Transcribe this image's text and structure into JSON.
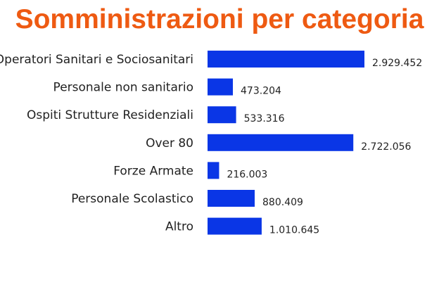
{
  "chart_data": {
    "type": "bar",
    "orientation": "horizontal",
    "title": "Somministrazioni per categoria",
    "categories": [
      "Operatori Sanitari e Sociosanitari",
      "Personale non sanitario",
      "Ospiti Strutture Residenziali",
      "Over 80",
      "Forze Armate",
      "Personale Scolastico",
      "Altro"
    ],
    "values": [
      2929452,
      473204,
      533316,
      2722056,
      216003,
      880409,
      1010645
    ],
    "value_labels": [
      "2.929.452",
      "473.204",
      "533.316",
      "2.722.056",
      "216.003",
      "880.409",
      "1.010.645"
    ],
    "xlim": [
      0,
      2929452
    ],
    "grid": false,
    "legend": "none",
    "colors": {
      "bar": "#0a36e6",
      "title": "#ee5a12"
    }
  }
}
